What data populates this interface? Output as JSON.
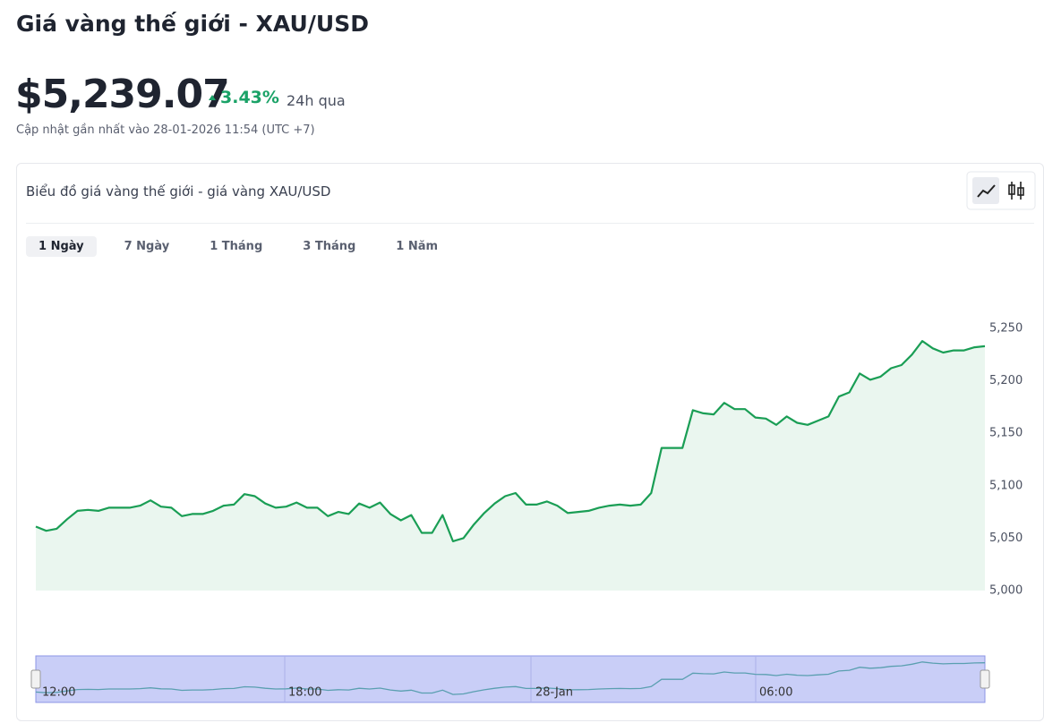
{
  "header": {
    "title": "Giá vàng thế giới - XAU/USD",
    "price": "$5,239.07",
    "change": "3.43%",
    "period": "24h qua",
    "updated": "Cập nhật gần nhất vào 28-01-2026 11:54 (UTC +7)"
  },
  "tabs": [
    "1 Ngày",
    "7 Ngày",
    "1 Tháng",
    "3 Tháng",
    "1 Năm"
  ],
  "chart_data": {
    "type": "line",
    "title": "Biểu đồ giá vàng thế giới - giá vàng XAU/USD",
    "color": "#1a9e55",
    "values": [
      5061,
      5057,
      5059,
      5068,
      5076,
      5077,
      5076,
      5079,
      5079,
      5079,
      5081,
      5086,
      5080,
      5079,
      5071,
      5073,
      5073,
      5076,
      5081,
      5082,
      5092,
      5090,
      5083,
      5079,
      5080,
      5084,
      5079,
      5079,
      5071,
      5075,
      5073,
      5083,
      5079,
      5084,
      5073,
      5067,
      5072,
      5055,
      5055,
      5072,
      5047,
      5050,
      5063,
      5074,
      5083,
      5090,
      5093,
      5082,
      5082,
      5085,
      5081,
      5074,
      5075,
      5076,
      5079,
      5081,
      5082,
      5081,
      5082,
      5093,
      5136,
      5136,
      5136,
      5172,
      5169,
      5168,
      5179,
      5173,
      5173,
      5165,
      5164,
      5158,
      5166,
      5160,
      5158,
      5162,
      5166,
      5185,
      5189,
      5207,
      5201,
      5204,
      5212,
      5215,
      5225,
      5238,
      5231,
      5227,
      5229,
      5229,
      5232,
      5233
    ],
    "ylim": [
      5000,
      5250
    ],
    "yticks": [
      {
        "value": 5000,
        "label": "5,000"
      },
      {
        "value": 5050,
        "label": "5,050"
      },
      {
        "value": 5100,
        "label": "5,100"
      },
      {
        "value": 5150,
        "label": "5,150"
      },
      {
        "value": 5200,
        "label": "5,200"
      },
      {
        "value": 5250,
        "label": "5,250"
      }
    ],
    "grid": false
  },
  "navigator": {
    "labels": [
      "12:00",
      "18:00",
      "28-Jan",
      "06:00"
    ]
  }
}
